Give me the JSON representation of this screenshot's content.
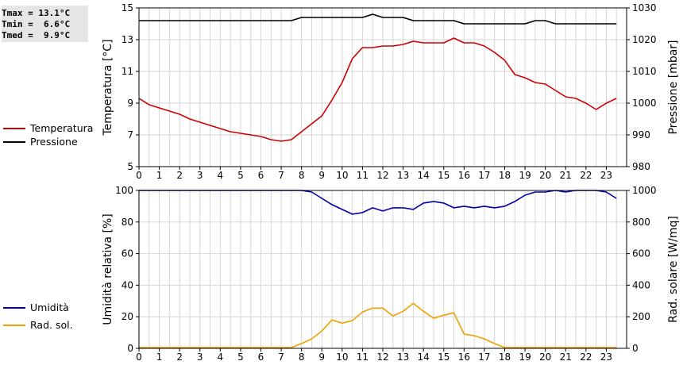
{
  "summary": {
    "lines": [
      "Tmax = 13.1°C",
      "Tmin =  6.6°C",
      "Tmed =  9.9°C"
    ]
  },
  "colors": {
    "temperature": "#cc0000",
    "pressure": "#000000",
    "humidity": "#0000aa",
    "radiation": "#f0a000",
    "grid": "#d6d6d6"
  },
  "chart_data": [
    {
      "type": "line",
      "x_ticks": [
        "0",
        "1",
        "2",
        "3",
        "4",
        "5",
        "6",
        "7",
        "8",
        "9",
        "10",
        "11",
        "12",
        "13",
        "14",
        "15",
        "16",
        "17",
        "18",
        "19",
        "20",
        "21",
        "22",
        "23"
      ],
      "xlim": [
        0,
        24
      ],
      "ylabel": "Temperatura [°C]",
      "ylim": [
        5,
        15
      ],
      "y_ticks": [
        "5",
        "7",
        "9",
        "11",
        "13",
        "15"
      ],
      "y2label": "Pressione [mbar]",
      "y2lim": [
        980,
        1030
      ],
      "y2_ticks": [
        "980",
        "990",
        "1000",
        "1010",
        "1020",
        "1030"
      ],
      "legend": [
        "Temperatura",
        "Pressione"
      ],
      "series": [
        {
          "name": "Temperatura",
          "axis": "left",
          "x": [
            0,
            0.5,
            1,
            1.5,
            2,
            2.5,
            3,
            3.5,
            4,
            4.5,
            5,
            5.5,
            6,
            6.5,
            7,
            7.5,
            8,
            8.5,
            9,
            9.5,
            10,
            10.5,
            11,
            11.5,
            12,
            12.5,
            13,
            13.5,
            14,
            14.5,
            15,
            15.5,
            16,
            16.5,
            17,
            17.5,
            18,
            18.5,
            19,
            19.5,
            20,
            20.5,
            21,
            21.5,
            22,
            22.5,
            23,
            23.5
          ],
          "values": [
            9.3,
            8.9,
            8.7,
            8.5,
            8.3,
            8.0,
            7.8,
            7.6,
            7.4,
            7.2,
            7.1,
            7.0,
            6.9,
            6.7,
            6.6,
            6.7,
            7.2,
            7.7,
            8.2,
            9.2,
            10.3,
            11.8,
            12.5,
            12.5,
            12.6,
            12.6,
            12.7,
            12.9,
            12.8,
            12.8,
            12.8,
            13.1,
            12.8,
            12.8,
            12.6,
            12.2,
            11.7,
            10.8,
            10.6,
            10.3,
            10.2,
            9.8,
            9.4,
            9.3,
            9.0,
            8.6,
            9.0,
            9.3
          ]
        },
        {
          "name": "Pressione",
          "axis": "right",
          "x": [
            0,
            0.5,
            1,
            1.5,
            2,
            2.5,
            3,
            3.5,
            4,
            4.5,
            5,
            5.5,
            6,
            6.5,
            7,
            7.5,
            8,
            8.5,
            9,
            9.5,
            10,
            10.5,
            11,
            11.5,
            12,
            12.5,
            13,
            13.5,
            14,
            14.5,
            15,
            15.5,
            16,
            16.5,
            17,
            17.5,
            18,
            18.5,
            19,
            19.5,
            20,
            20.5,
            21,
            21.5,
            22,
            22.5,
            23,
            23.5
          ],
          "values": [
            1026,
            1026,
            1026,
            1026,
            1026,
            1026,
            1026,
            1026,
            1026,
            1026,
            1026,
            1026,
            1026,
            1026,
            1026,
            1026,
            1027,
            1027,
            1027,
            1027,
            1027,
            1027,
            1027,
            1028,
            1027,
            1027,
            1027,
            1026,
            1026,
            1026,
            1026,
            1026,
            1025,
            1025,
            1025,
            1025,
            1025,
            1025,
            1025,
            1026,
            1026,
            1025,
            1025,
            1025,
            1025,
            1025,
            1025,
            1025
          ]
        }
      ]
    },
    {
      "type": "line",
      "x_ticks": [
        "0",
        "1",
        "2",
        "3",
        "4",
        "5",
        "6",
        "7",
        "8",
        "9",
        "10",
        "11",
        "12",
        "13",
        "14",
        "15",
        "16",
        "17",
        "18",
        "19",
        "20",
        "21",
        "22",
        "23"
      ],
      "xlim": [
        0,
        24
      ],
      "ylabel": "Umidità relativa [%]",
      "ylim": [
        0,
        100
      ],
      "y_ticks": [
        "0",
        "20",
        "40",
        "60",
        "80",
        "100"
      ],
      "y2label": "Rad. solare [W/mq]",
      "y2lim": [
        0,
        1000
      ],
      "y2_ticks": [
        "0",
        "200",
        "400",
        "600",
        "800",
        "1000"
      ],
      "legend": [
        "Umidità",
        "Rad. sol."
      ],
      "series": [
        {
          "name": "Umidità",
          "axis": "left",
          "x": [
            0,
            0.5,
            1,
            1.5,
            2,
            2.5,
            3,
            3.5,
            4,
            4.5,
            5,
            5.5,
            6,
            6.5,
            7,
            7.5,
            8,
            8.5,
            9,
            9.5,
            10,
            10.5,
            11,
            11.5,
            12,
            12.5,
            13,
            13.5,
            14,
            14.5,
            15,
            15.5,
            16,
            16.5,
            17,
            17.5,
            18,
            18.5,
            19,
            19.5,
            20,
            20.5,
            21,
            21.5,
            22,
            22.5,
            23,
            23.5
          ],
          "values": [
            100,
            100,
            100,
            100,
            100,
            100,
            100,
            100,
            100,
            100,
            100,
            100,
            100,
            100,
            100,
            100,
            100,
            99,
            95,
            91,
            88,
            85,
            86,
            89,
            87,
            89,
            89,
            88,
            92,
            93,
            92,
            89,
            90,
            89,
            90,
            89,
            90,
            93,
            97,
            99,
            99,
            100,
            99,
            100,
            100,
            100,
            99,
            95
          ]
        },
        {
          "name": "Rad. sol.",
          "axis": "right",
          "x": [
            0,
            0.5,
            1,
            1.5,
            2,
            2.5,
            3,
            3.5,
            4,
            4.5,
            5,
            5.5,
            6,
            6.5,
            7,
            7.5,
            8,
            8.5,
            9,
            9.5,
            10,
            10.5,
            11,
            11.5,
            12,
            12.5,
            13,
            13.5,
            14,
            14.5,
            15,
            15.5,
            16,
            16.5,
            17,
            17.5,
            18,
            18.5,
            19,
            19.5,
            20,
            20.5,
            21,
            21.5,
            22,
            22.5,
            23,
            23.5
          ],
          "values": [
            5,
            5,
            5,
            5,
            5,
            5,
            5,
            5,
            5,
            5,
            5,
            5,
            5,
            5,
            5,
            5,
            30,
            60,
            110,
            180,
            160,
            175,
            230,
            255,
            255,
            205,
            235,
            285,
            235,
            190,
            210,
            225,
            90,
            80,
            60,
            30,
            5,
            5,
            5,
            5,
            5,
            5,
            5,
            5,
            5,
            5,
            5,
            5
          ]
        }
      ]
    }
  ]
}
